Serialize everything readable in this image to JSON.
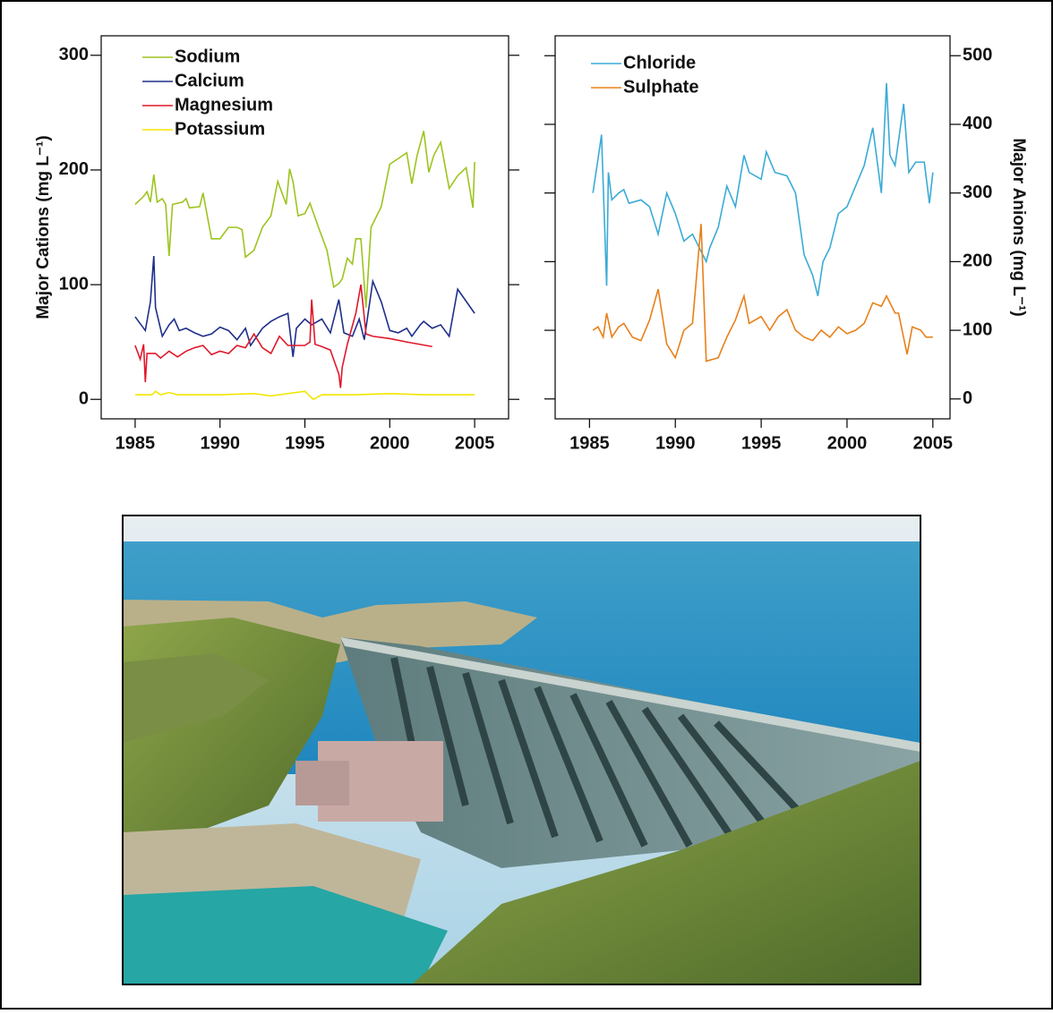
{
  "chart_data": [
    {
      "type": "line",
      "y_label": "Major Cations (mg L⁻¹)",
      "yaxis": "left",
      "legend": "upper left",
      "xlim": [
        1983,
        2007
      ],
      "xticks": [
        1985,
        1990,
        1995,
        2000,
        2005
      ],
      "ylim": [
        -17,
        317
      ],
      "yticks": [
        0,
        100,
        200,
        300
      ],
      "series": [
        {
          "name": "Sodium",
          "color": "#9dc41f",
          "x": [
            1985,
            1985.5,
            1985.7,
            1985.9,
            1986.1,
            1986.3,
            1986.6,
            1986.8,
            1987,
            1987.2,
            1987.8,
            1988,
            1988.2,
            1988.8,
            1989,
            1989.5,
            1990,
            1990.5,
            1991,
            1991.3,
            1991.5,
            1992,
            1992.5,
            1993,
            1993.4,
            1993.9,
            1994.1,
            1994.3,
            1994.6,
            1995,
            1995.3,
            1995.8,
            1996.3,
            1996.7,
            1997,
            1997.2,
            1997.5,
            1997.8,
            1998,
            1998.3,
            1998.6,
            1998.9,
            1999.5,
            2000,
            2000.5,
            2001,
            2001.3,
            2001.6,
            2002,
            2002.3,
            2002.6,
            2003,
            2003.5,
            2004,
            2004.5,
            2004.9,
            2005
          ],
          "values": [
            170,
            177,
            181,
            172,
            196,
            172,
            175,
            170,
            125,
            170,
            172,
            175,
            167,
            168,
            180,
            140,
            140,
            150,
            150,
            148,
            124,
            130,
            150,
            160,
            190,
            170,
            201,
            190,
            160,
            162,
            171,
            150,
            130,
            98,
            101,
            105,
            123,
            118,
            140,
            140,
            80,
            150,
            168,
            205,
            210,
            215,
            188,
            212,
            234,
            198,
            213,
            224,
            184,
            195,
            202,
            167,
            207
          ]
        },
        {
          "name": "Calcium",
          "color": "#1f2f8a",
          "x": [
            1985,
            1985.6,
            1985.9,
            1986.1,
            1986.2,
            1986.6,
            1987,
            1987.3,
            1987.6,
            1988,
            1988.5,
            1989,
            1989.5,
            1990,
            1990.5,
            1991,
            1991.5,
            1991.8,
            1992.5,
            1993,
            1993.5,
            1994,
            1994.3,
            1994.5,
            1995,
            1995.4,
            1996,
            1996.5,
            1997,
            1997.3,
            1997.8,
            1998.2,
            1998.5,
            1999,
            1999.5,
            2000,
            2000.5,
            2001,
            2001.3,
            2001.8,
            2002,
            2002.5,
            2003,
            2003.5,
            2004,
            2005
          ],
          "values": [
            72,
            60,
            85,
            125,
            80,
            55,
            65,
            70,
            60,
            62,
            58,
            55,
            57,
            63,
            60,
            52,
            62,
            47,
            62,
            68,
            72,
            75,
            37,
            62,
            70,
            65,
            70,
            58,
            87,
            58,
            55,
            70,
            52,
            103,
            85,
            60,
            58,
            62,
            55,
            65,
            68,
            62,
            65,
            55,
            96,
            75
          ]
        },
        {
          "name": "Magnesium",
          "color": "#e0182b",
          "x": [
            1985,
            1985.3,
            1985.5,
            1985.6,
            1985.7,
            1986.2,
            1986.5,
            1987,
            1987.5,
            1988,
            1988.5,
            1989,
            1989.5,
            1990,
            1990.5,
            1991,
            1991.5,
            1992,
            1992.5,
            1993,
            1993.5,
            1994,
            1995,
            1995.3,
            1995.4,
            1995.6,
            1996,
            1996.5,
            1997,
            1997.1,
            1997.2,
            1997.5,
            1998,
            1998.3,
            1998.6,
            1999,
            2000,
            2001,
            2002.5
          ],
          "values": [
            47,
            35,
            48,
            15,
            40,
            40,
            36,
            42,
            37,
            42,
            45,
            47,
            39,
            42,
            40,
            47,
            45,
            57,
            45,
            40,
            55,
            47,
            47,
            50,
            87,
            48,
            46,
            43,
            22,
            10,
            28,
            48,
            75,
            100,
            57,
            55,
            53,
            50,
            46
          ]
        },
        {
          "name": "Potassium",
          "color": "#f2e600",
          "x": [
            1985,
            1986,
            1986.2,
            1986.5,
            1987,
            1987.5,
            1990,
            1992,
            1993,
            1995,
            1995.5,
            1996,
            1998,
            2000,
            2002,
            2005
          ],
          "values": [
            4,
            4,
            7,
            4,
            6,
            4,
            4,
            5,
            3,
            7,
            0,
            4,
            4,
            5,
            4,
            4
          ]
        }
      ]
    },
    {
      "type": "line",
      "y_label": "Major Anions (mg L⁻¹)",
      "yaxis": "right",
      "legend": "upper left",
      "xlim": [
        1983,
        2006
      ],
      "xticks": [
        1985,
        1990,
        1995,
        2000,
        2005
      ],
      "ylim": [
        -29,
        529
      ],
      "yticks": [
        0,
        100,
        200,
        300,
        400,
        500
      ],
      "series": [
        {
          "name": "Chloride",
          "color": "#3aabd6",
          "x": [
            1985.2,
            1985.5,
            1985.7,
            1986,
            1986.1,
            1986.3,
            1986.7,
            1987,
            1987.3,
            1988,
            1988.5,
            1989,
            1989.5,
            1990,
            1990.5,
            1991,
            1991.3,
            1991.8,
            1992,
            1992.5,
            1993,
            1993.5,
            1994,
            1994.3,
            1995,
            1995.3,
            1995.8,
            1996.5,
            1997,
            1997.5,
            1998,
            1998.3,
            1998.6,
            1999,
            1999.5,
            2000,
            2000.5,
            2001,
            2001.5,
            2002,
            2002.3,
            2002.5,
            2002.8,
            2003.3,
            2003.6,
            2004,
            2004.5,
            2004.8,
            2005
          ],
          "values": [
            300,
            350,
            385,
            165,
            330,
            290,
            300,
            305,
            285,
            290,
            280,
            240,
            300,
            270,
            230,
            240,
            225,
            200,
            220,
            250,
            310,
            280,
            355,
            330,
            320,
            360,
            330,
            325,
            300,
            210,
            180,
            150,
            200,
            220,
            270,
            280,
            310,
            340,
            395,
            300,
            460,
            355,
            340,
            430,
            330,
            345,
            345,
            285,
            330
          ]
        },
        {
          "name": "Sulphate",
          "color": "#e8801a",
          "x": [
            1985.2,
            1985.5,
            1985.8,
            1986,
            1986.3,
            1986.7,
            1987,
            1987.5,
            1988,
            1988.5,
            1989,
            1989.5,
            1990,
            1990.5,
            1991,
            1991.5,
            1991.8,
            1992.5,
            1993,
            1993.5,
            1994,
            1994.3,
            1995,
            1995.5,
            1996,
            1996.5,
            1997,
            1997.5,
            1998,
            1998.5,
            1999,
            1999.5,
            2000,
            2000.5,
            2001,
            2001.5,
            2002,
            2002.3,
            2002.8,
            2003,
            2003.5,
            2003.8,
            2004.3,
            2004.6,
            2005
          ],
          "values": [
            100,
            105,
            90,
            125,
            90,
            105,
            110,
            90,
            85,
            115,
            160,
            80,
            60,
            100,
            110,
            255,
            55,
            60,
            90,
            115,
            150,
            110,
            120,
            100,
            120,
            130,
            100,
            90,
            85,
            100,
            90,
            105,
            95,
            100,
            110,
            140,
            135,
            150,
            125,
            125,
            65,
            105,
            100,
            90,
            90
          ]
        }
      ]
    }
  ]
}
